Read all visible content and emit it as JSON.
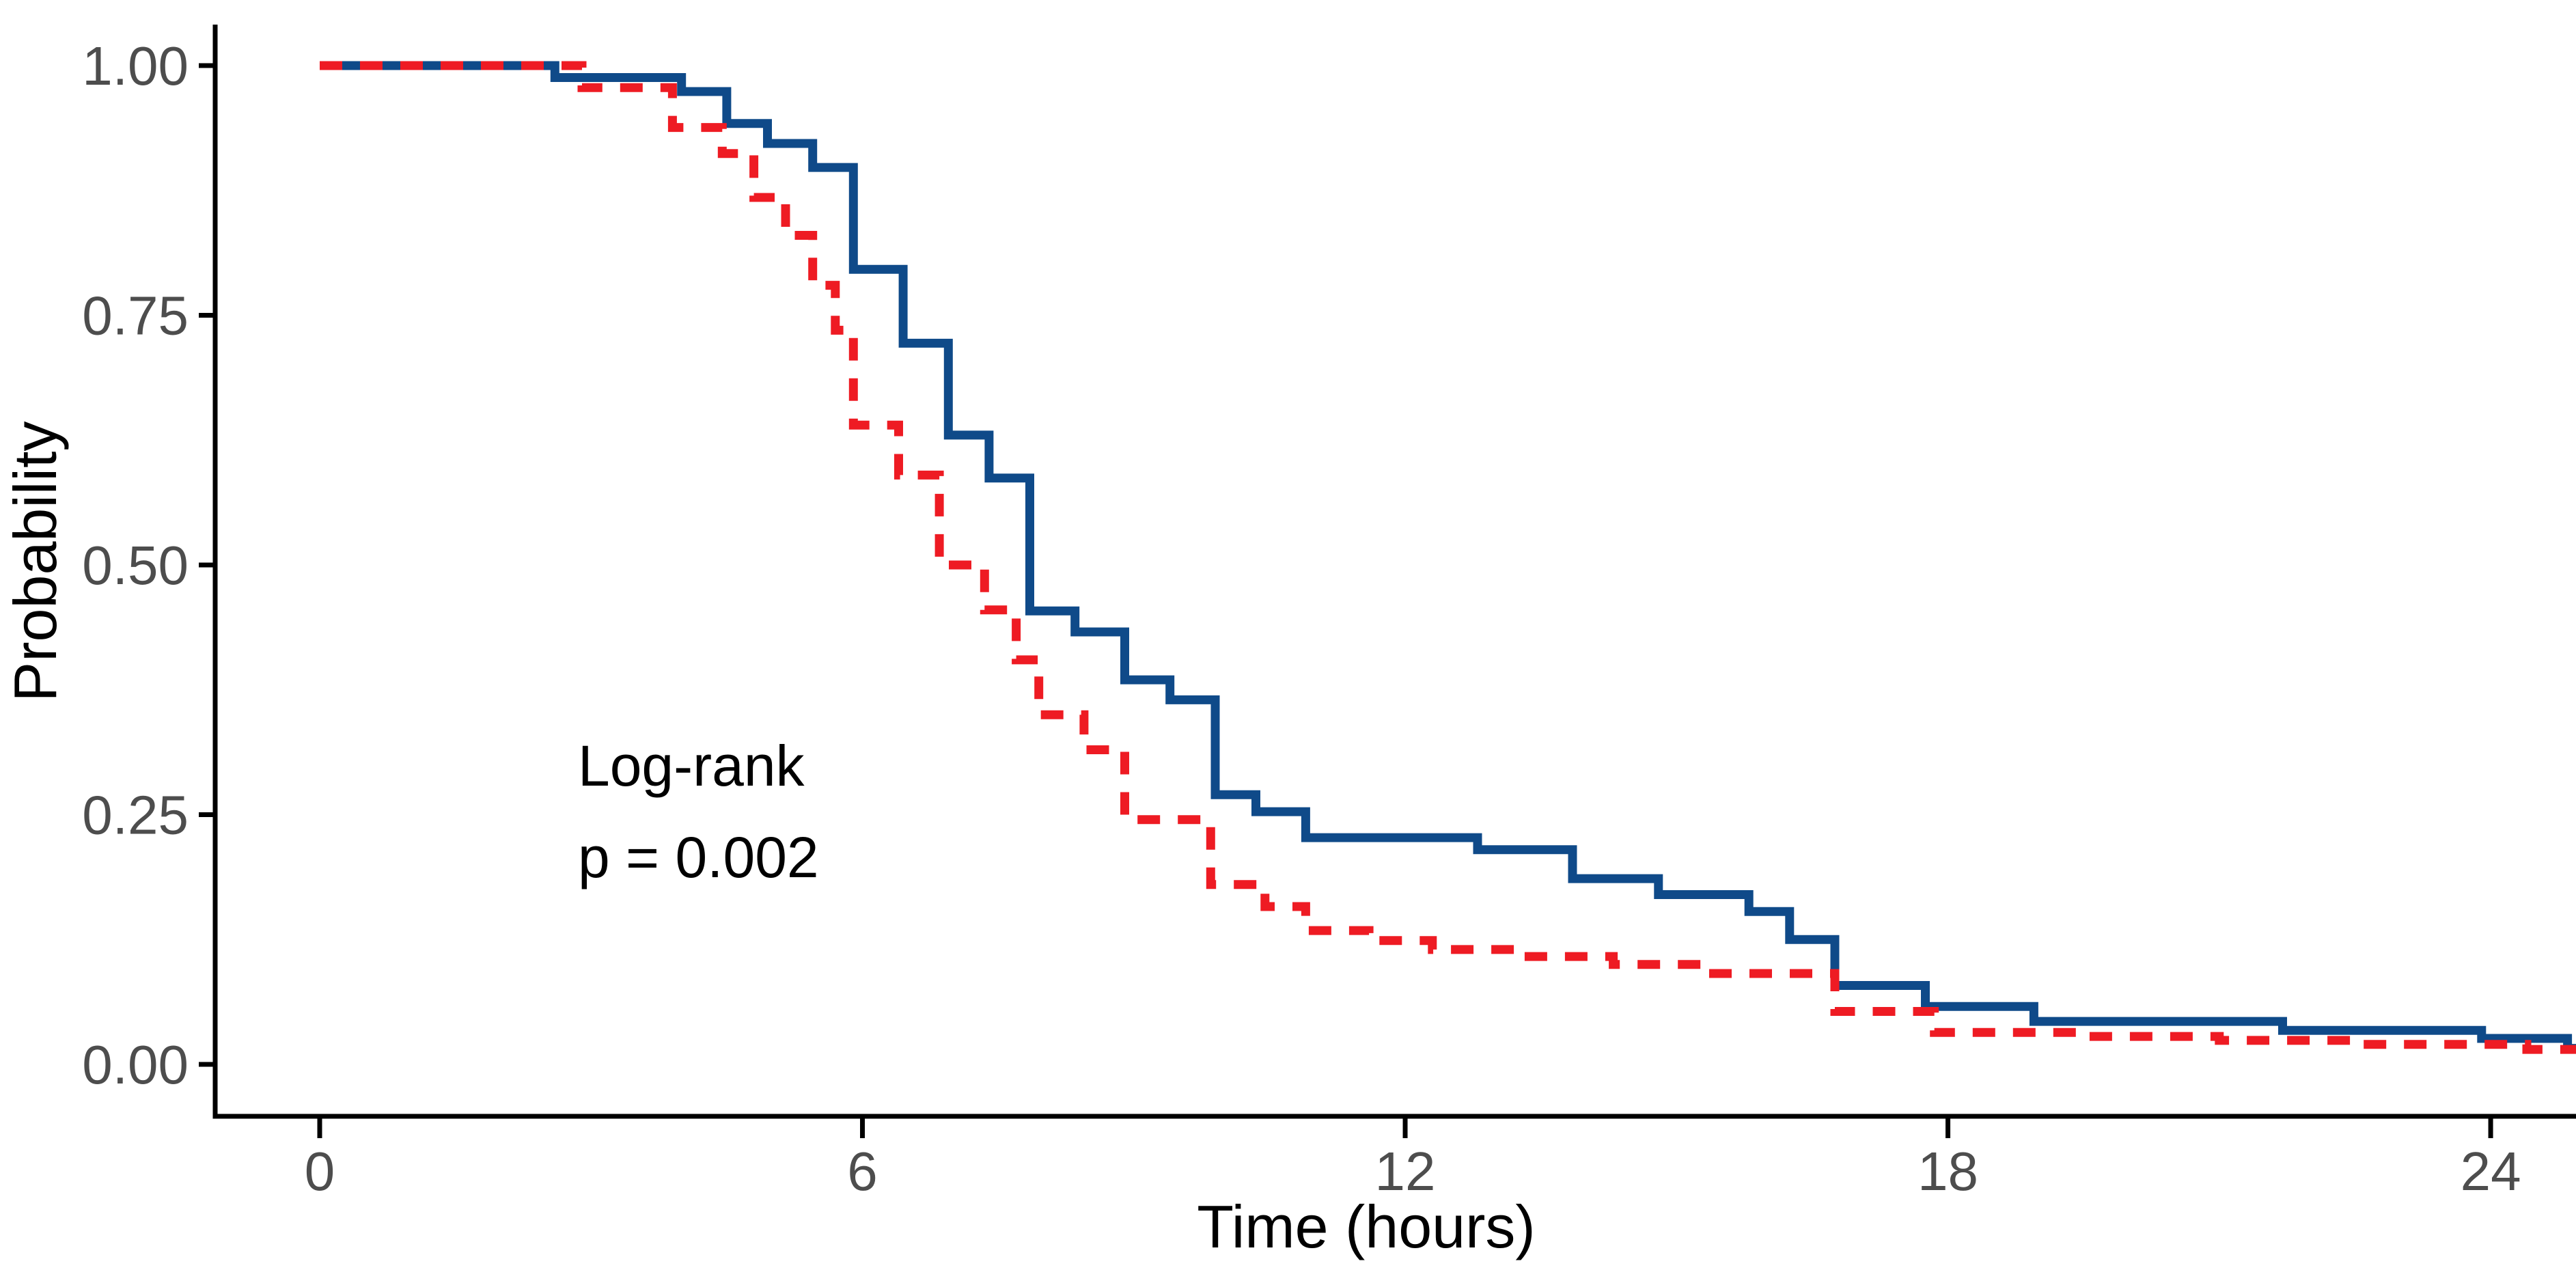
{
  "chart_data": {
    "type": "line",
    "subtype": "kaplan-meier-step-curves",
    "title": "",
    "xlabel": "Time (hours)",
    "ylabel": "Probability",
    "x_ticks": {
      "values": [
        0,
        6,
        12,
        18,
        24
      ],
      "labels": [
        "0",
        "6",
        "12",
        "18",
        "24"
      ]
    },
    "y_ticks": {
      "values": [
        0.0,
        0.25,
        0.5,
        0.75,
        1.0
      ],
      "labels": [
        "0.00",
        "0.25",
        "0.50",
        "0.75",
        "1.00"
      ]
    },
    "xlim": [
      -1.15,
      24.95
    ],
    "ylim": [
      -0.052,
      1.04
    ],
    "x_end": 24.95,
    "grid": false,
    "legend_position": "none",
    "annotation": {
      "line1": "Log-rank",
      "line2": "p = 0.002"
    },
    "series": [
      {
        "name": "group-solid-blue",
        "color": "#0F4A89",
        "line_style": "solid",
        "steps": [
          [
            0,
            1.0
          ],
          [
            2.6,
            0.988
          ],
          [
            4.0,
            0.974
          ],
          [
            4.5,
            0.942
          ],
          [
            4.95,
            0.922
          ],
          [
            5.45,
            0.898
          ],
          [
            5.9,
            0.796
          ],
          [
            6.45,
            0.722
          ],
          [
            6.95,
            0.63
          ],
          [
            7.4,
            0.587
          ],
          [
            7.85,
            0.454
          ],
          [
            8.35,
            0.433
          ],
          [
            8.9,
            0.385
          ],
          [
            9.4,
            0.365
          ],
          [
            9.9,
            0.27
          ],
          [
            10.35,
            0.253
          ],
          [
            10.9,
            0.227
          ],
          [
            12.8,
            0.215
          ],
          [
            13.85,
            0.186
          ],
          [
            14.8,
            0.17
          ],
          [
            15.8,
            0.153
          ],
          [
            16.25,
            0.125
          ],
          [
            16.75,
            0.079
          ],
          [
            17.75,
            0.058
          ],
          [
            18.95,
            0.043
          ],
          [
            21.7,
            0.034
          ],
          [
            23.9,
            0.026
          ],
          [
            24.85,
            0.016
          ]
        ]
      },
      {
        "name": "group-dashed-red",
        "color": "#EE1B23",
        "line_style": "dashed",
        "steps": [
          [
            0,
            1.0
          ],
          [
            2.9,
            0.978
          ],
          [
            3.9,
            0.938
          ],
          [
            4.45,
            0.912
          ],
          [
            4.8,
            0.868
          ],
          [
            5.15,
            0.83
          ],
          [
            5.45,
            0.78
          ],
          [
            5.7,
            0.735
          ],
          [
            5.9,
            0.64
          ],
          [
            6.4,
            0.59
          ],
          [
            6.85,
            0.5
          ],
          [
            7.35,
            0.455
          ],
          [
            7.7,
            0.405
          ],
          [
            7.95,
            0.35
          ],
          [
            8.45,
            0.315
          ],
          [
            8.9,
            0.245
          ],
          [
            9.85,
            0.18
          ],
          [
            10.45,
            0.158
          ],
          [
            10.9,
            0.134
          ],
          [
            11.6,
            0.124
          ],
          [
            12.3,
            0.115
          ],
          [
            13.3,
            0.108
          ],
          [
            14.3,
            0.1
          ],
          [
            15.3,
            0.091
          ],
          [
            16.75,
            0.053
          ],
          [
            17.85,
            0.032
          ],
          [
            19.5,
            0.028
          ],
          [
            21.0,
            0.024
          ],
          [
            22.5,
            0.02
          ],
          [
            24.4,
            0.015
          ]
        ]
      }
    ]
  },
  "colors": {
    "background": "#FFFFFF",
    "axis_line": "#000000",
    "tick_label": "#4D4D4D",
    "axis_title": "#000000",
    "annotation": "#000000"
  }
}
